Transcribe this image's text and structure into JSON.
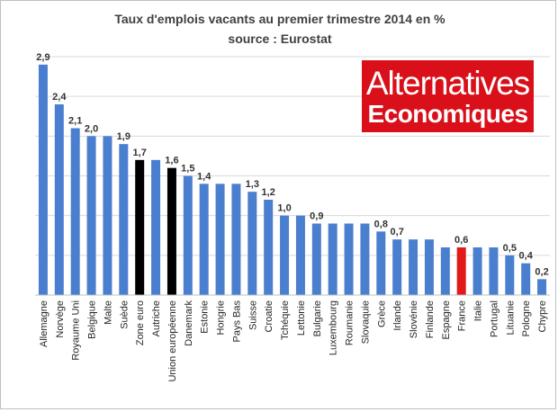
{
  "title_line1": "Taux d'emplois vacants au premier trimestre 2014 en %",
  "title_line2": "source : Eurostat",
  "logo": {
    "line1": "Alternatives",
    "line2": "Economiques",
    "color": "#d90f1a"
  },
  "colors": {
    "default": "#4a7fd0",
    "euro": "#000000",
    "france": "#e2191b",
    "grid": "#d9d9d9",
    "axis": "#bfbfbf"
  },
  "chart_data": {
    "type": "bar",
    "categories": [
      "Allemagne",
      "Norvège",
      "Royaume Uni",
      "Belgique",
      "Malte",
      "Suède",
      "Zone euro",
      "Autriche",
      "Union européenne",
      "Danemark",
      "Estonie",
      "Hongrie",
      "Pays Bas",
      "Suisse",
      "Croatie",
      "Tchéquie",
      "Lettonie",
      "Bulgarie",
      "Luxembourg",
      "Roumanie",
      "Slovaquie",
      "Grèce",
      "Irlande",
      "Slovénie",
      "Finlande",
      "Espagne",
      "France",
      "Italie",
      "Portugal",
      "Lituanie",
      "Pologne",
      "Chypre"
    ],
    "values": [
      2.9,
      2.4,
      2.1,
      2.0,
      2.0,
      1.9,
      1.7,
      1.7,
      1.6,
      1.5,
      1.4,
      1.4,
      1.4,
      1.3,
      1.2,
      1.0,
      1.0,
      0.9,
      0.9,
      0.9,
      0.9,
      0.8,
      0.7,
      0.7,
      0.7,
      0.6,
      0.6,
      0.6,
      0.6,
      0.5,
      0.4,
      0.2
    ],
    "labels": [
      "2,9",
      "2,4",
      "2,1",
      "2,0",
      "",
      "1,9",
      "1,7",
      "",
      "1,6",
      "1,5",
      "1,4",
      "",
      "",
      "1,3",
      "1,2",
      "1,0",
      "",
      "0,9",
      "",
      "",
      "",
      "0,8",
      "0,7",
      "",
      "",
      "",
      "0,6",
      "",
      "",
      "0,5",
      "0,4",
      "0,2"
    ],
    "highlight": {
      "Zone euro": "euro",
      "Union européenne": "euro",
      "France": "france"
    },
    "ylim": [
      0,
      3
    ],
    "grid": true,
    "legend": "none"
  }
}
